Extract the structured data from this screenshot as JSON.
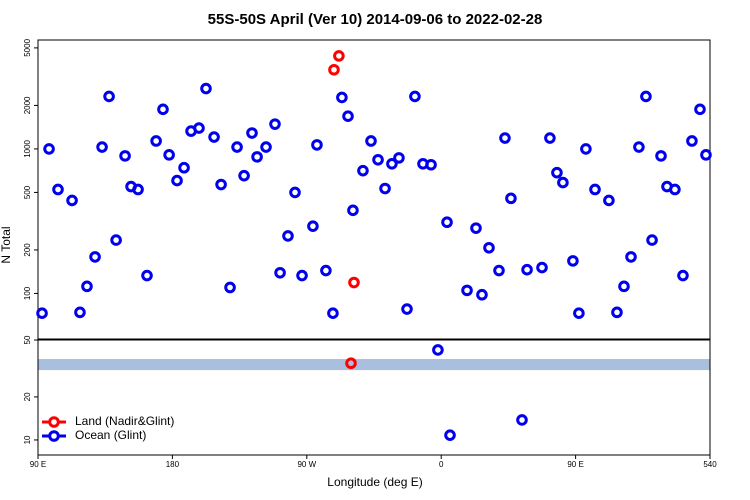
{
  "chart_data": [
    {
      "type": "scatter",
      "title": "55S-50S April (Ver 10)   2014-09-06 to 2022-02-28",
      "ylabel": "N Total",
      "ylog": true,
      "xlim": [
        90,
        540
      ],
      "ylim": [
        48.4,
        5670
      ],
      "yticks": [
        100,
        200,
        500,
        1000,
        2000,
        5000
      ],
      "series": [
        {
          "color": "#ff0000",
          "x": [
            291.5,
            288.2,
            301.6
          ],
          "values": [
            4400,
            3530,
            119
          ]
        },
        {
          "color": "#0000ee",
          "x": [
            92.7,
            97.4,
            103.4,
            112.8,
            118.1,
            122.8,
            128.2,
            132.9,
            137.6,
            142.3,
            148.3,
            152.3,
            157.0,
            163.0,
            169.1,
            173.7,
            177.8,
            183.1,
            187.8,
            192.5,
            197.8,
            202.5,
            207.9,
            212.6,
            218.6,
            223.3,
            228.0,
            233.3,
            236.7,
            242.7,
            248.7,
            252.1,
            257.4,
            262.1,
            266.8,
            274.1,
            276.8,
            282.8,
            287.5,
            293.5,
            297.6,
            300.9,
            307.6,
            313.0,
            317.7,
            322.4,
            327.0,
            331.7,
            337.1,
            342.4,
            347.8,
            353.2,
            363.9,
            377.3,
            383.3,
            387.3,
            392.0,
            398.7,
            402.7,
            406.7,
            417.5,
            427.5,
            432.8,
            437.5,
            441.5,
            448.2,
            452.2,
            456.9,
            463.0,
            472.3,
            477.7,
            482.4,
            487.1,
            492.4,
            497.1,
            501.2,
            507.2,
            511.2,
            516.5,
            521.9,
            527.9,
            533.3,
            537.3
          ],
          "values": [
            73,
            1000,
            524,
            440,
            74,
            112,
            179,
            1030,
            2307,
            234,
            895,
            549,
            524,
            133,
            1135,
            1879,
            910,
            604,
            741,
            1328,
            1394,
            2616,
            1208,
            567,
            110,
            1030,
            653,
            1288,
            881,
            1030,
            1484,
            139,
            250,
            500,
            133,
            292,
            1066,
            144,
            73,
            2270,
            1684,
            376,
            707,
            1135,
            841,
            532,
            789,
            867,
            78,
            2307,
            789,
            777,
            311,
            105,
            283,
            98,
            207,
            144,
            1189,
            455,
            146,
            151,
            1189,
            685,
            585,
            168,
            73,
            1000,
            524,
            440,
            74,
            112,
            179,
            1030,
            2307,
            234,
            895,
            549,
            524,
            133,
            1135,
            1879,
            910
          ]
        }
      ]
    },
    {
      "type": "scatter",
      "xlabel": "Longitude (deg E)",
      "ylog": true,
      "xlim": [
        90,
        540
      ],
      "ylim": [
        7.85,
        50
      ],
      "xticks": [
        {
          "value": 90,
          "label": "90 E"
        },
        180,
        {
          "value": 270,
          "label": "90 W"
        },
        {
          "value": 360,
          "label": "0"
        },
        {
          "value": 450,
          "label": "90 E"
        },
        540
      ],
      "yticks": [
        10,
        20,
        50
      ],
      "band": {
        "range": [
          30.8,
          36.8
        ],
        "color": "#a9bfdf"
      },
      "legend": "lower left",
      "series": [
        {
          "name": "Land (Nadir&Glint)",
          "color": "#ff0000",
          "x": [
            299.6
          ],
          "values": [
            34.4
          ]
        },
        {
          "name": "Ocean (Glint)",
          "color": "#0000ee",
          "x": [
            357.8,
            365.9,
            414.1
          ],
          "values": [
            42.6,
            10.8,
            13.8
          ]
        }
      ]
    }
  ]
}
